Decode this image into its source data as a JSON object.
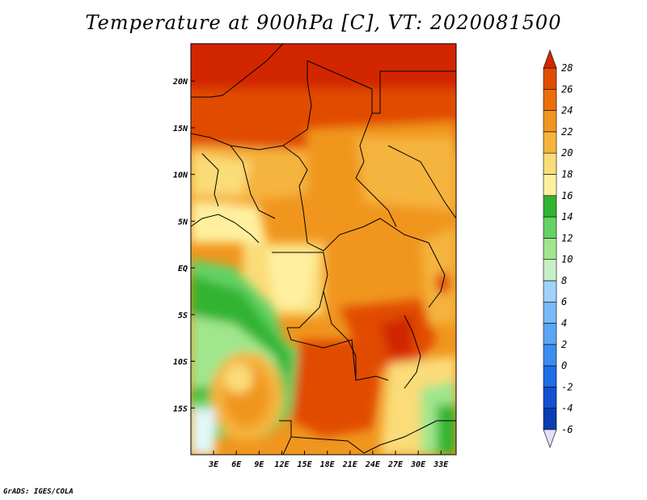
{
  "title": "Temperature at 900hPa [C], VT: 2020081500",
  "footer": "GrADS: IGES/COLA",
  "chart_data": {
    "type": "heatmap",
    "variable": "Temperature at 900hPa",
    "unit": "C",
    "valid_time": "2020081500",
    "lon_range": [
      0,
      35
    ],
    "lat_range": [
      -20,
      24
    ],
    "x_ticks": [
      "3E",
      "6E",
      "9E",
      "12E",
      "15E",
      "18E",
      "21E",
      "24E",
      "27E",
      "30E",
      "33E"
    ],
    "x_tick_values": [
      3,
      6,
      9,
      12,
      15,
      18,
      21,
      24,
      27,
      30,
      33
    ],
    "y_ticks": [
      "20N",
      "15N",
      "10N",
      "5N",
      "EQ",
      "5S",
      "10S",
      "15S"
    ],
    "y_tick_values": [
      20,
      15,
      10,
      5,
      0,
      -5,
      -10,
      -15
    ],
    "colorbar": {
      "levels": [
        -6,
        -4,
        -2,
        0,
        2,
        4,
        6,
        8,
        10,
        12,
        14,
        16,
        18,
        20,
        22,
        24,
        26,
        28
      ],
      "labels": [
        "-6",
        "-4",
        "-2",
        "0",
        "2",
        "4",
        "6",
        "8",
        "10",
        "12",
        "14",
        "16",
        "18",
        "20",
        "22",
        "24",
        "26",
        "28"
      ],
      "colors": [
        "#00007f",
        "#0a3cb4",
        "#1450d2",
        "#1e6ee6",
        "#3c8cf0",
        "#5aa5f5",
        "#78b9fa",
        "#a0d2fa",
        "#c8f0c8",
        "#a0e68c",
        "#64d264",
        "#32b432",
        "#fff0a0",
        "#fadc78",
        "#f5b43c",
        "#f0961e",
        "#eb6e0a",
        "#e14b00",
        "#d22800"
      ],
      "under_color": "#e0e0f8",
      "over_color": "#d22800",
      "extend": "both"
    }
  }
}
